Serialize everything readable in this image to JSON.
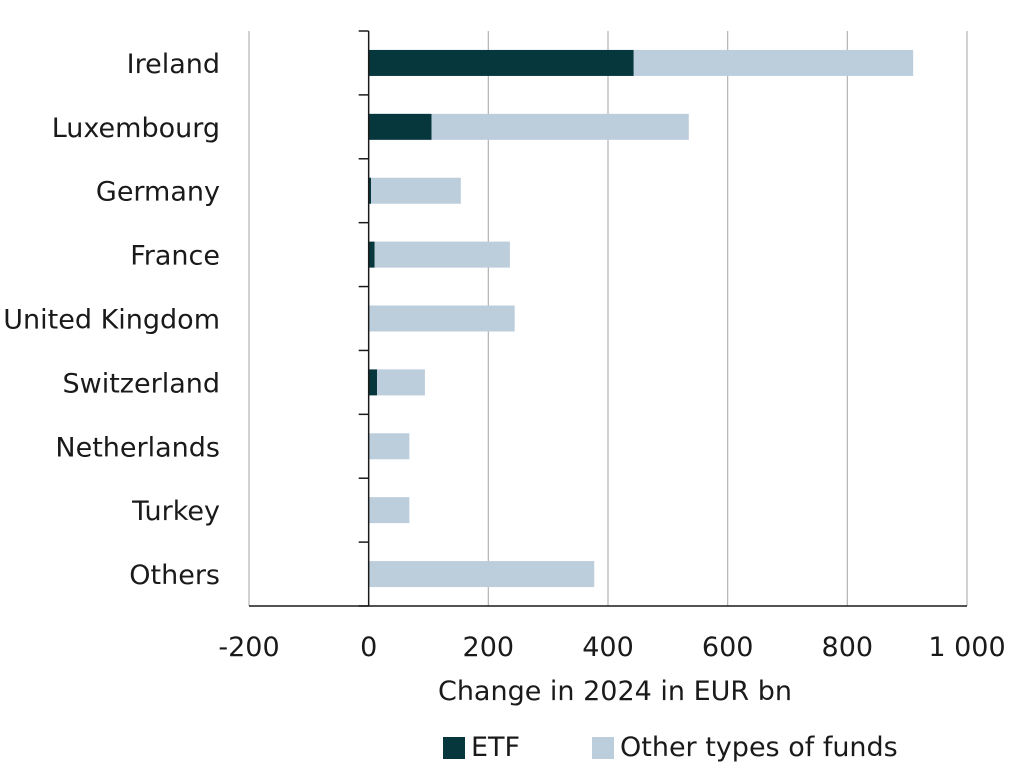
{
  "chart_data": {
    "type": "bar",
    "orientation": "horizontal",
    "stacked": true,
    "categories": [
      "Ireland",
      "Luxembourg",
      "Germany",
      "France",
      "United Kingdom",
      "Switzerland",
      "Netherlands",
      "Turkey",
      "Others"
    ],
    "series": [
      {
        "name": "ETF",
        "color": "#06373d",
        "values": [
          443,
          105,
          4,
          10,
          0,
          14,
          0,
          0,
          0
        ]
      },
      {
        "name": "Other types of funds",
        "color": "#bccddc",
        "values": [
          467,
          430,
          150,
          226,
          244,
          80,
          68,
          68,
          377
        ]
      }
    ],
    "xlabel": "Change in 2024 in EUR bn",
    "xlim": [
      -200,
      1000
    ],
    "xticks": [
      -200,
      0,
      200,
      400,
      600,
      800,
      1000
    ],
    "xtick_labels": [
      "-200",
      "0",
      "200",
      "400",
      "600",
      "800",
      "1 000"
    ],
    "grid": "vertical",
    "legend_position": "bottom",
    "grid_color": "#b3b3b3",
    "axis_color": "#1a1a1a"
  }
}
